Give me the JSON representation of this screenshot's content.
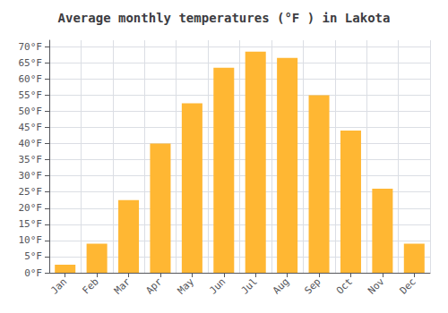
{
  "chart_data": {
    "type": "bar",
    "title": "Average monthly temperatures (°F ) in Lakota",
    "categories": [
      "Jan",
      "Feb",
      "Mar",
      "Apr",
      "May",
      "Jun",
      "Jul",
      "Aug",
      "Sep",
      "Oct",
      "Nov",
      "Dec"
    ],
    "values": [
      2.5,
      9.0,
      22.5,
      40.0,
      52.5,
      63.5,
      68.5,
      66.5,
      55.0,
      44.0,
      26.0,
      9.0
    ],
    "color": "#FFB733",
    "ylim": [
      0,
      72
    ],
    "yticks": [
      {
        "value": 0,
        "label": "0°F"
      },
      {
        "value": 5,
        "label": "5°F"
      },
      {
        "value": 10,
        "label": "10°F"
      },
      {
        "value": 15,
        "label": "15°F"
      },
      {
        "value": 20,
        "label": "20°F"
      },
      {
        "value": 25,
        "label": "25°F"
      },
      {
        "value": 30,
        "label": "30°F"
      },
      {
        "value": 35,
        "label": "35°F"
      },
      {
        "value": 40,
        "label": "40°F"
      },
      {
        "value": 45,
        "label": "45°F"
      },
      {
        "value": 50,
        "label": "50°F"
      },
      {
        "value": 55,
        "label": "55°F"
      },
      {
        "value": 60,
        "label": "60°F"
      },
      {
        "value": 65,
        "label": "65°F"
      },
      {
        "value": 70,
        "label": "70°F"
      }
    ],
    "grid": true
  }
}
